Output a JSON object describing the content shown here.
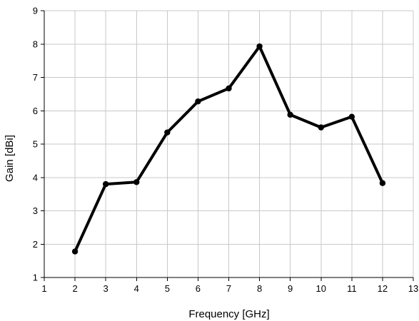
{
  "chart_data": {
    "type": "line",
    "title": "",
    "xlabel": "Frequency [GHz]",
    "ylabel": "Gain [dBi]",
    "xlim": [
      1,
      13
    ],
    "ylim": [
      1,
      9
    ],
    "xticks": [
      1,
      2,
      3,
      4,
      5,
      6,
      7,
      8,
      9,
      10,
      11,
      12,
      13
    ],
    "yticks": [
      1,
      2,
      3,
      4,
      5,
      6,
      7,
      8,
      9
    ],
    "grid": true,
    "legend": "none",
    "series": [
      {
        "color": "#000000",
        "marker": "circle",
        "x": [
          2,
          3,
          4,
          5,
          6,
          7,
          8,
          9,
          10,
          11,
          12
        ],
        "y": [
          1.78,
          3.8,
          3.86,
          5.35,
          6.28,
          6.67,
          7.93,
          5.88,
          5.5,
          5.82,
          3.83
        ]
      }
    ]
  }
}
